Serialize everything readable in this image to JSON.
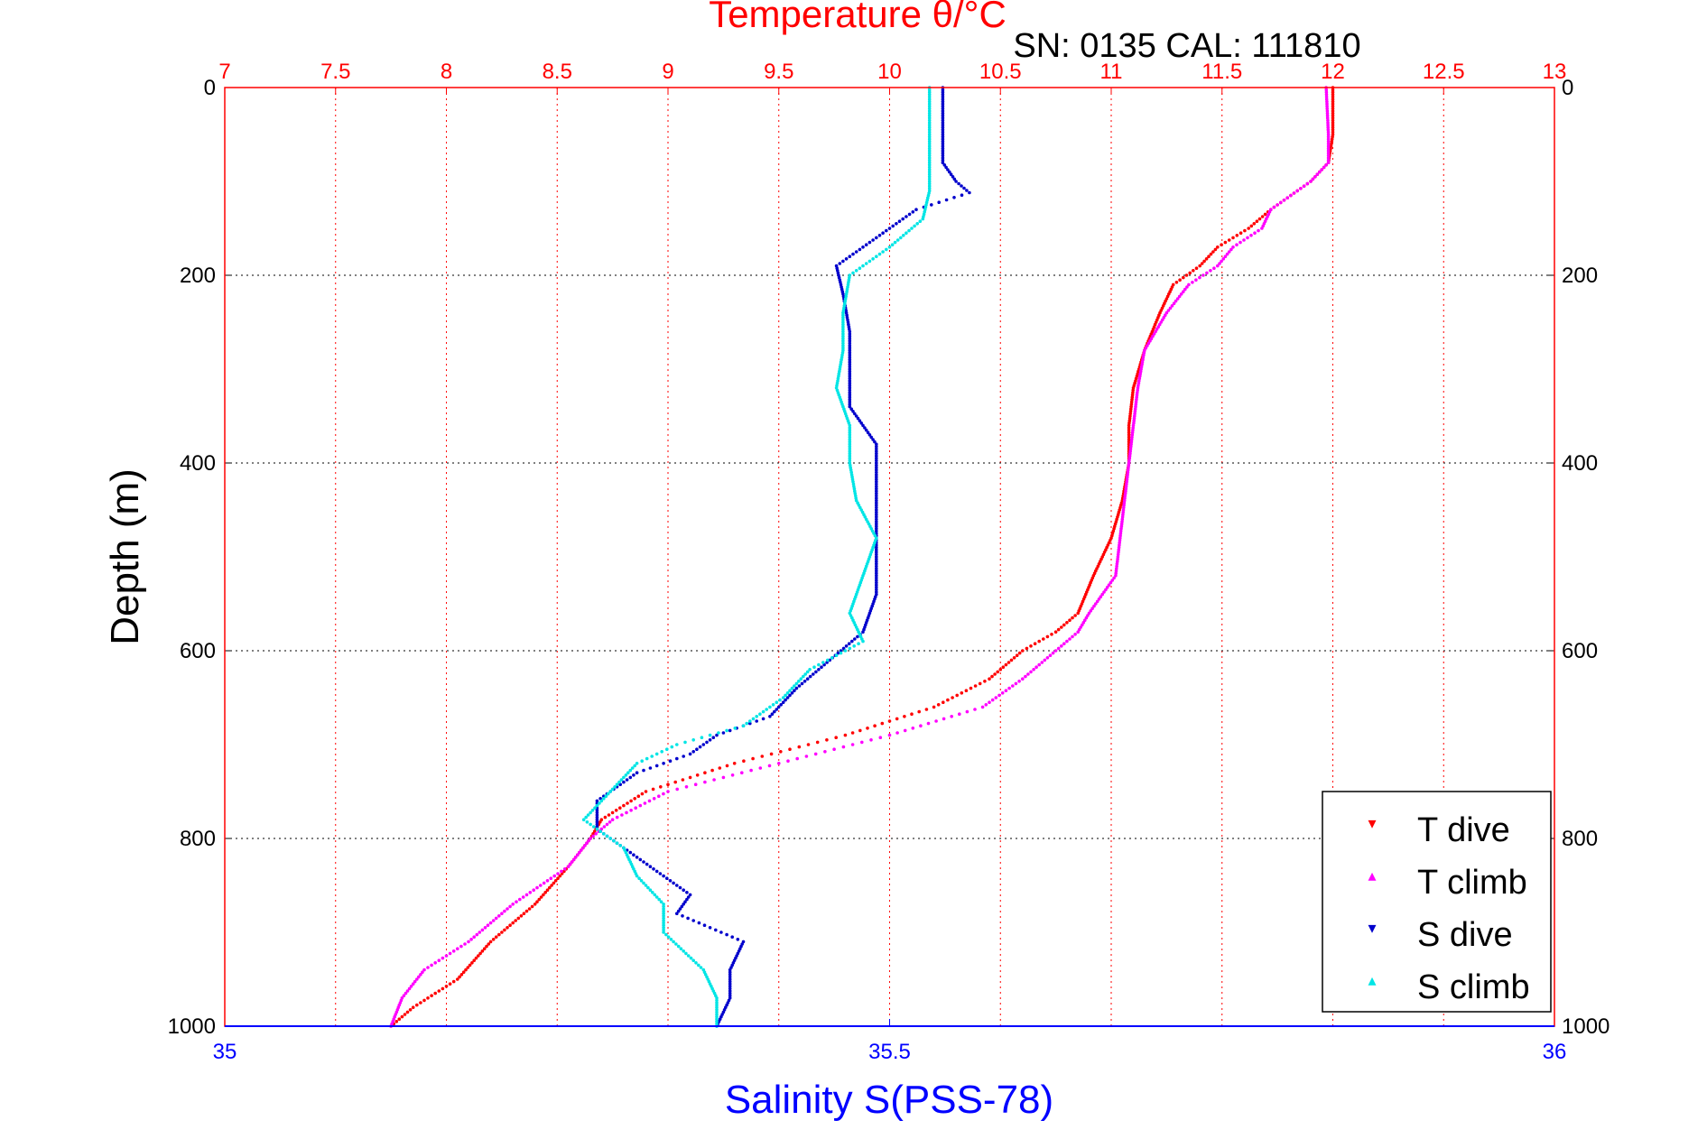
{
  "chart_data": {
    "type": "scatter",
    "title": "Temperature θ/°C",
    "subtitle": "SN: 0135  CAL: 111810",
    "xlabel": "Salinity S(PSS-78)",
    "ylabel": "Depth (m)",
    "colors": {
      "temperature_axis": "#ff0000",
      "salinity_axis": "#0000ff",
      "t_dive": "#ff0000",
      "t_climb": "#ff00ff",
      "s_dive": "#0000cc",
      "s_climb": "#00e5e5"
    },
    "axes": {
      "temperature_lim": [
        7,
        13
      ],
      "temperature_ticks": [
        "7",
        "7.5",
        "8",
        "8.5",
        "9",
        "9.5",
        "10",
        "10.5",
        "11",
        "11.5",
        "12",
        "12.5",
        "13"
      ],
      "salinity_lim": [
        35,
        36
      ],
      "salinity_ticks": [
        "35",
        "35.5",
        "36"
      ],
      "depth_lim": [
        0,
        1000
      ],
      "depth_ticks": [
        "0",
        "200",
        "400",
        "600",
        "800",
        "1000"
      ],
      "grid": true,
      "depth_inverted": true
    },
    "legend": {
      "position": "bottom-right",
      "entries": [
        "T dive",
        "T climb",
        "S dive",
        "S climb"
      ]
    },
    "series": [
      {
        "name": "T dive",
        "axis": "temperature",
        "depth": [
          0,
          50,
          80,
          100,
          130,
          150,
          170,
          190,
          210,
          240,
          280,
          320,
          360,
          400,
          440,
          480,
          520,
          560,
          580,
          600,
          630,
          660,
          690,
          720,
          750,
          780,
          800,
          830,
          870,
          910,
          950,
          980,
          1000
        ],
        "values": [
          12.0,
          12.0,
          11.98,
          11.9,
          11.72,
          11.62,
          11.48,
          11.4,
          11.28,
          11.22,
          11.15,
          11.1,
          11.08,
          11.08,
          11.05,
          11.0,
          10.92,
          10.85,
          10.75,
          10.6,
          10.45,
          10.2,
          9.8,
          9.3,
          8.9,
          8.7,
          8.65,
          8.55,
          8.4,
          8.2,
          8.05,
          7.85,
          7.75
        ]
      },
      {
        "name": "T climb",
        "axis": "temperature",
        "depth": [
          0,
          50,
          80,
          100,
          130,
          150,
          170,
          190,
          210,
          240,
          280,
          320,
          360,
          400,
          440,
          480,
          520,
          560,
          580,
          600,
          630,
          660,
          690,
          720,
          750,
          780,
          800,
          830,
          870,
          910,
          940,
          970,
          1000
        ],
        "values": [
          11.97,
          11.98,
          11.98,
          11.9,
          11.72,
          11.68,
          11.55,
          11.48,
          11.35,
          11.25,
          11.15,
          11.12,
          11.1,
          11.08,
          11.06,
          11.04,
          11.02,
          10.9,
          10.85,
          10.75,
          10.6,
          10.42,
          10.0,
          9.5,
          9.0,
          8.75,
          8.65,
          8.55,
          8.3,
          8.1,
          7.9,
          7.8,
          7.75
        ]
      },
      {
        "name": "S dive",
        "axis": "salinity",
        "depth": [
          0,
          40,
          80,
          100,
          112,
          130,
          160,
          190,
          220,
          260,
          300,
          340,
          380,
          420,
          460,
          500,
          540,
          580,
          610,
          640,
          670,
          690,
          710,
          730,
          760,
          790,
          810,
          840,
          860,
          880,
          910,
          940,
          970,
          1000
        ],
        "values": [
          35.54,
          35.54,
          35.54,
          35.55,
          35.56,
          35.52,
          35.49,
          35.46,
          35.465,
          35.47,
          35.47,
          35.47,
          35.49,
          35.49,
          35.49,
          35.49,
          35.49,
          35.48,
          35.455,
          35.43,
          35.41,
          35.37,
          35.35,
          35.31,
          35.28,
          35.28,
          35.3,
          35.33,
          35.35,
          35.34,
          35.39,
          35.38,
          35.38,
          35.37
        ]
      },
      {
        "name": "S climb",
        "axis": "salinity",
        "depth": [
          0,
          40,
          80,
          110,
          140,
          170,
          200,
          240,
          280,
          320,
          360,
          400,
          440,
          480,
          520,
          560,
          590,
          620,
          650,
          680,
          700,
          720,
          750,
          780,
          810,
          840,
          870,
          900,
          940,
          970,
          1000
        ],
        "values": [
          35.53,
          35.53,
          35.53,
          35.53,
          35.525,
          35.5,
          35.47,
          35.465,
          35.465,
          35.46,
          35.47,
          35.47,
          35.475,
          35.49,
          35.48,
          35.47,
          35.48,
          35.44,
          35.42,
          35.39,
          35.34,
          35.31,
          35.29,
          35.27,
          35.3,
          35.31,
          35.33,
          35.33,
          35.36,
          35.37,
          35.37
        ]
      }
    ]
  }
}
